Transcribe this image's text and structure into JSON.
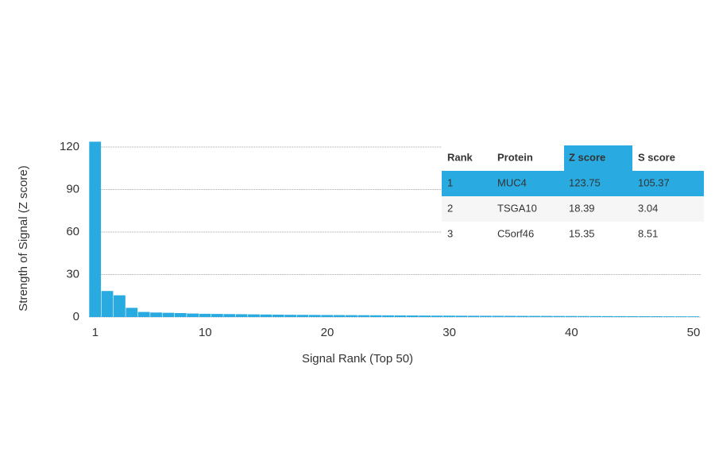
{
  "chart_data": {
    "type": "bar",
    "x_label": "Signal Rank (Top 50)",
    "y_label": "Strength of Signal (Z score)",
    "x": [
      1,
      2,
      3,
      4,
      5,
      6,
      7,
      8,
      9,
      10,
      11,
      12,
      13,
      14,
      15,
      16,
      17,
      18,
      19,
      20,
      21,
      22,
      23,
      24,
      25,
      26,
      27,
      28,
      29,
      30,
      31,
      32,
      33,
      34,
      35,
      36,
      37,
      38,
      39,
      40,
      41,
      42,
      43,
      44,
      45,
      46,
      47,
      48,
      49,
      50
    ],
    "values": [
      123.75,
      18.39,
      15.35,
      6.5,
      3.6,
      3.2,
      3.0,
      2.8,
      2.5,
      2.3,
      2.2,
      2.1,
      2.0,
      1.9,
      1.8,
      1.7,
      1.6,
      1.55,
      1.5,
      1.45,
      1.4,
      1.35,
      1.3,
      1.25,
      1.2,
      1.15,
      1.1,
      1.05,
      1.0,
      0.98,
      0.95,
      0.92,
      0.9,
      0.88,
      0.85,
      0.82,
      0.8,
      0.78,
      0.75,
      0.72,
      0.7,
      0.68,
      0.65,
      0.62,
      0.6,
      0.58,
      0.55,
      0.52,
      0.5,
      0.48
    ],
    "color": "#29abe2",
    "xlim": [
      0.5,
      50.5
    ],
    "xticks": [
      1,
      10,
      20,
      30,
      40,
      50
    ],
    "ylim": [
      0,
      125
    ],
    "yticks": [
      0,
      30,
      60,
      90,
      120
    ],
    "grid": true,
    "table": {
      "columns": [
        "Rank",
        "Protein",
        "Z score",
        "S score"
      ],
      "rows": [
        [
          "1",
          "MUC4",
          "123.75",
          "105.37"
        ],
        [
          "2",
          "TSGA10",
          "18.39",
          "3.04"
        ],
        [
          "3",
          "C5orf46",
          "15.35",
          "8.51"
        ]
      ],
      "highlight_color": "#29abe2"
    }
  }
}
